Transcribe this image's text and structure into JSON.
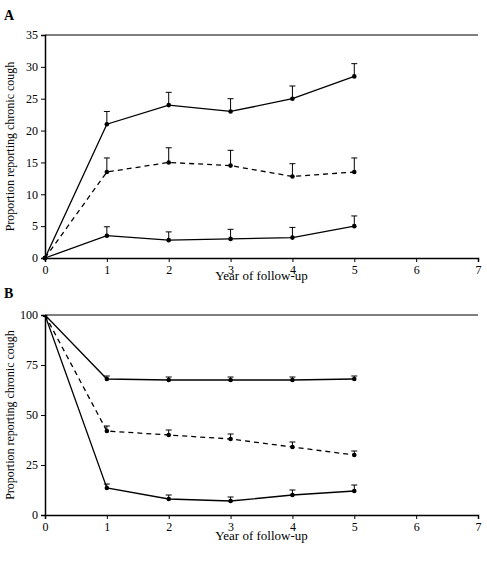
{
  "chart_data": [
    {
      "type": "line",
      "title": "A",
      "x_label": "Year of follow-up",
      "y_label": "Proportion reporting chronic cough",
      "x": [
        0,
        1,
        2,
        3,
        4,
        5
      ],
      "xlim": [
        0,
        7
      ],
      "xticks": [
        0,
        1,
        2,
        3,
        4,
        5,
        6,
        7
      ],
      "ylim": [
        0,
        35
      ],
      "yticks": [
        0,
        5,
        10,
        15,
        20,
        25,
        30,
        35
      ],
      "series": [
        {
          "color": "#000000",
          "line_style": "solid",
          "marker": "circle",
          "values": [
            0,
            21,
            24,
            23,
            25,
            28.5
          ],
          "errors": [
            null,
            2,
            2,
            2,
            2,
            2
          ]
        },
        {
          "color": "#000000",
          "line_style": "dashed",
          "marker": "circle",
          "values": [
            0,
            13.5,
            15,
            14.5,
            12.8,
            13.5
          ],
          "errors": [
            null,
            2.2,
            2.3,
            2.4,
            2,
            2.2
          ]
        },
        {
          "color": "#000000",
          "line_style": "solid",
          "marker": "circle",
          "values": [
            0,
            3.5,
            2.8,
            3,
            3.2,
            5
          ],
          "errors": [
            null,
            1.4,
            1.3,
            1.5,
            1.6,
            1.6
          ]
        }
      ]
    },
    {
      "type": "line",
      "title": "B",
      "x_label": "Year of follow-up",
      "y_label": "Proportion reporting chronic cough",
      "x": [
        0,
        1,
        2,
        3,
        4,
        5
      ],
      "xlim": [
        0,
        7
      ],
      "xticks": [
        0,
        1,
        2,
        3,
        4,
        5,
        6,
        7
      ],
      "ylim": [
        0,
        100
      ],
      "yticks": [
        0,
        25,
        50,
        75,
        100
      ],
      "series": [
        {
          "color": "#000000",
          "line_style": "solid",
          "marker": "circle",
          "values": [
            100,
            68,
            67.5,
            67.5,
            67.5,
            68
          ],
          "errors": [
            null,
            1.5,
            1.5,
            1.5,
            1.5,
            1.5
          ]
        },
        {
          "color": "#000000",
          "line_style": "dashed",
          "marker": "circle",
          "values": [
            100,
            42,
            40,
            38,
            34,
            30
          ],
          "errors": [
            null,
            2.5,
            2.5,
            2.5,
            2.5,
            2
          ]
        },
        {
          "color": "#000000",
          "line_style": "solid",
          "marker": "circle",
          "values": [
            100,
            13.5,
            8,
            7,
            10,
            12
          ],
          "errors": [
            null,
            2,
            2,
            2,
            2.5,
            3
          ]
        }
      ]
    }
  ]
}
